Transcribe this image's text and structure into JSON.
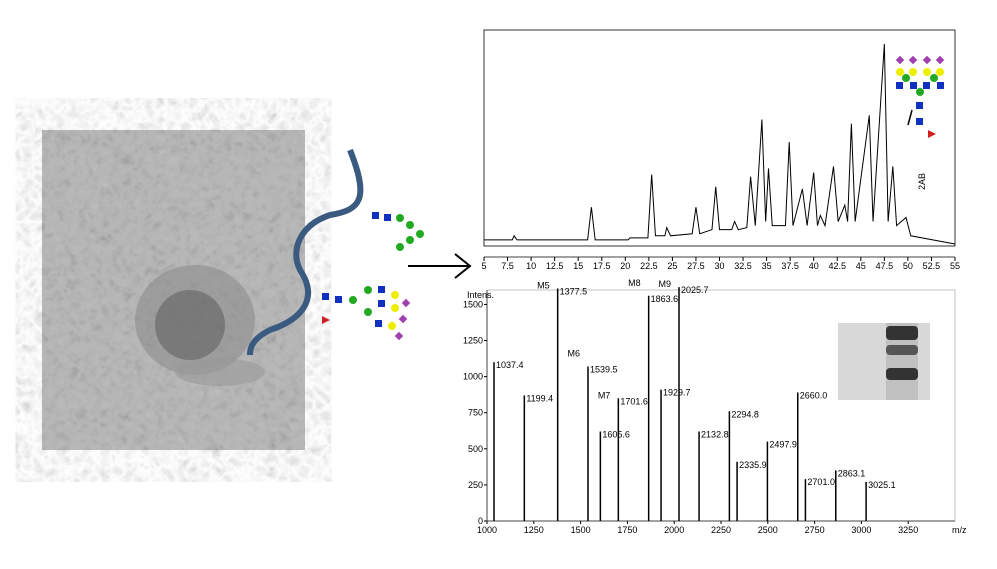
{
  "chart_data": [
    {
      "type": "line",
      "annotation": "2AB",
      "color": "#000",
      "x": [
        5,
        8,
        8.2,
        8.5,
        16,
        16.4,
        16.8,
        20.3,
        20.5,
        22.4,
        22.8,
        23.2,
        24.2,
        24.4,
        24.8,
        27.1,
        27.5,
        27.9,
        29.2,
        29.6,
        30,
        31.3,
        31.6,
        32,
        32.9,
        33.3,
        33.8,
        34.5,
        34.9,
        35.2,
        35.6,
        37,
        37.4,
        37.8,
        38.8,
        39.3,
        40,
        40.4,
        40.7,
        41.2,
        42.1,
        42.6,
        43.3,
        43.6,
        44,
        44.4,
        45.9,
        46.3,
        47.5,
        47.9,
        48.4,
        48.8,
        49.8,
        50.3,
        55
      ],
      "values": [
        3,
        3,
        5,
        3,
        3,
        19,
        3,
        3,
        4,
        4,
        35,
        5,
        5,
        9,
        5,
        6,
        19,
        6,
        8,
        29,
        8,
        8,
        12,
        8,
        9,
        34,
        10,
        62,
        12,
        38,
        10,
        10,
        51,
        10,
        28,
        10,
        36,
        10,
        15,
        10,
        39,
        12,
        20,
        12,
        60,
        12,
        64,
        12,
        99,
        12,
        39,
        10,
        14,
        5,
        1
      ],
      "xlim": [
        5,
        55
      ],
      "xticks": [
        5,
        7.5,
        10,
        12.5,
        15,
        17.5,
        20,
        22.5,
        25,
        27.5,
        30,
        32.5,
        35,
        37.5,
        40,
        42.5,
        45,
        47.5,
        50,
        52.5,
        55
      ],
      "ylim": [
        0,
        100
      ]
    },
    {
      "type": "bar",
      "ylabel": "Intens.",
      "xlabel": "m/z",
      "color": "#000",
      "x": [
        1037.4,
        1199.4,
        1377.5,
        1539.5,
        1605.6,
        1701.6,
        1863.6,
        1929.7,
        2025.7,
        2132.8,
        2294.8,
        2335.9,
        2497.9,
        2660.0,
        2701.0,
        2863.1,
        3025.1
      ],
      "values": [
        1100,
        870,
        1610,
        1070,
        620,
        850,
        1560,
        910,
        1620,
        620,
        760,
        410,
        550,
        890,
        290,
        350,
        270
      ],
      "value_labels": [
        "1037.4",
        "1199.4",
        "1377.5",
        "1539.5",
        "1605.6",
        "1701.6",
        "1863.6",
        "1929.7",
        "2025.7",
        "2132.8",
        "2294.8",
        "2335.9",
        "2497.9",
        "2660.0",
        "2701.0",
        "2863.1",
        "3025.1"
      ],
      "annotations": [
        {
          "text": "M5",
          "x": 1377.5
        },
        {
          "text": "M6",
          "x": 1539.5
        },
        {
          "text": "M7",
          "x": 1701.6
        },
        {
          "text": "M8",
          "x": 1863.6
        },
        {
          "text": "M9",
          "x": 2025.7
        }
      ],
      "xlim": [
        1000,
        3500
      ],
      "xticks": [
        1000,
        1250,
        1500,
        1750,
        2000,
        2250,
        2500,
        2750,
        3000,
        3250
      ],
      "ylim": [
        0,
        1600
      ],
      "yticks": [
        0,
        250,
        500,
        750,
        1000,
        1250,
        1500
      ]
    }
  ]
}
